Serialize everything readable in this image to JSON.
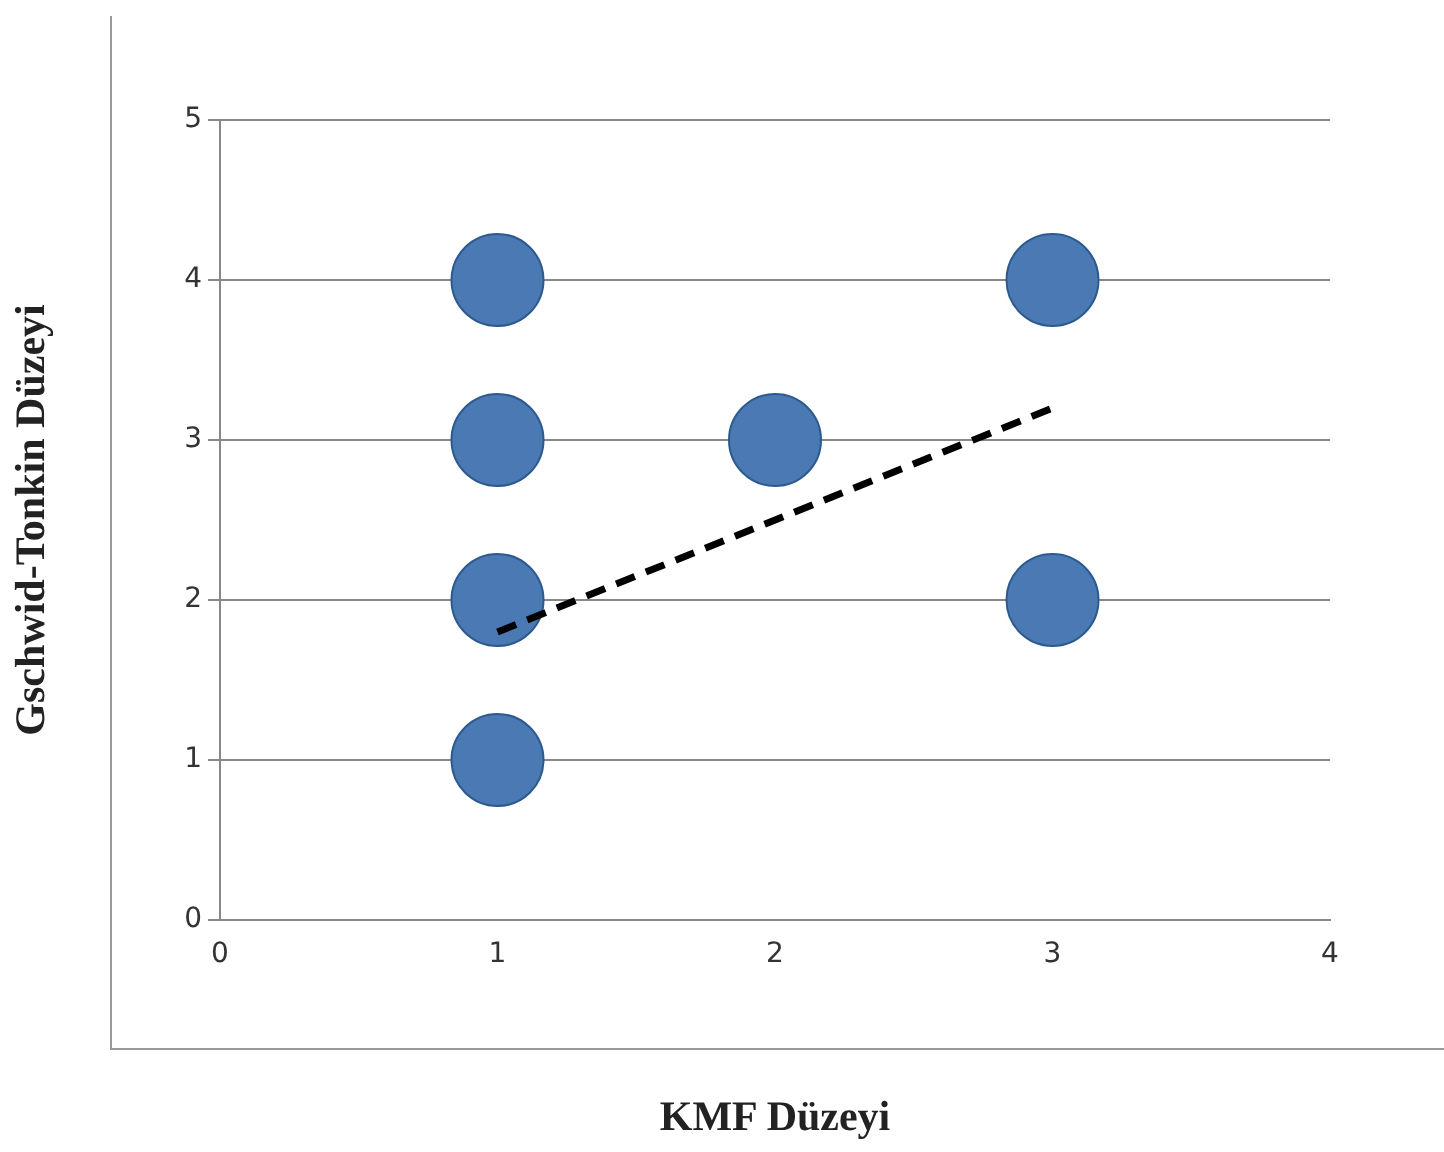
{
  "chart_data": {
    "type": "scatter",
    "xlabel": "KMF Düzeyi",
    "ylabel": "Gschwid-Tonkin Düzeyi",
    "xlim": [
      0,
      4
    ],
    "xticks": [
      0,
      1,
      2,
      3,
      4
    ],
    "ylim": [
      0,
      5
    ],
    "yticks": [
      0,
      1,
      2,
      3,
      4,
      5
    ],
    "grid": "y",
    "legend": false,
    "marker": "circle",
    "series": [
      {
        "type": "scatter",
        "color": "#4a79b3",
        "x": [
          1,
          1,
          1,
          1,
          2,
          3,
          3
        ],
        "values": [
          4,
          3,
          2,
          1,
          3,
          4,
          2
        ]
      },
      {
        "type": "line",
        "color": "#000000",
        "line_style": "dashed",
        "marker": "none",
        "x": [
          1,
          3
        ],
        "values": [
          1.8,
          3.2
        ]
      }
    ]
  }
}
